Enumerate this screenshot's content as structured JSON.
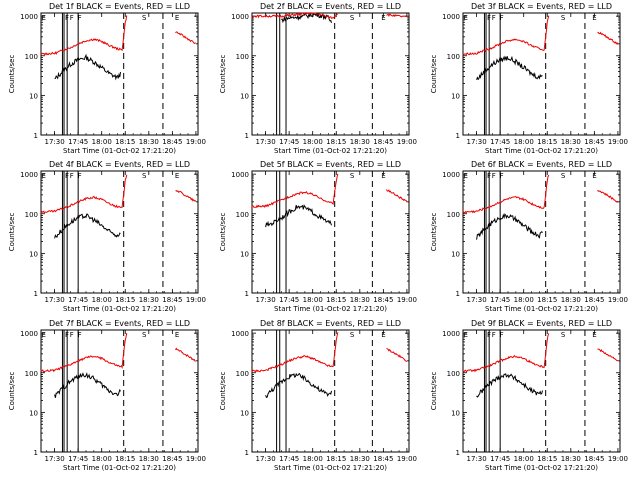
{
  "colors": {
    "events": "#000000",
    "lld": "#ee0000",
    "background": "#ffffff"
  },
  "ylabel": "Counts/sec",
  "xlabel": "Start Time (01-Oct-02 17:21:20)",
  "xticks": [
    "17:30",
    "17:45",
    "18:00",
    "18:15",
    "18:30",
    "18:45",
    "19:00"
  ],
  "yticks": [
    "1",
    "10",
    "100",
    "1000"
  ],
  "chart_data": [
    {
      "type": "line",
      "title": "Det 1f BLACK = Events, RED = LLD",
      "x_range": [
        "17:21:20",
        "19:01:20"
      ],
      "ylim": [
        1,
        1200
      ],
      "y_scale": "log",
      "events_start": "17:30",
      "events_end": "18:12",
      "series": [
        {
          "name": "Events",
          "x": [
            "17:30",
            "17:35",
            "17:40",
            "17:45",
            "17:50",
            "17:55",
            "18:00",
            "18:05",
            "18:10",
            "18:12"
          ],
          "values": [
            25,
            40,
            60,
            80,
            90,
            70,
            50,
            35,
            28,
            35
          ]
        },
        {
          "name": "LLD",
          "x": [
            "17:21",
            "17:30",
            "17:40",
            "17:45",
            "17:50",
            "17:55",
            "18:00",
            "18:05",
            "18:10",
            "18:13",
            "18:15",
            "18:16",
            "18:47",
            "18:50",
            "19:00"
          ],
          "values": [
            110,
            115,
            160,
            200,
            240,
            260,
            230,
            180,
            150,
            140,
            700,
            1000,
            400,
            350,
            200
          ]
        }
      ],
      "annotations": [
        {
          "label": "E",
          "x": "17:21"
        },
        {
          "label": "F",
          "x": "17:36"
        },
        {
          "label": "F",
          "x": "17:39"
        },
        {
          "label": "F",
          "x": "17:44"
        },
        {
          "label": "S",
          "x": "18:25"
        },
        {
          "label": "E",
          "x": "18:46"
        }
      ],
      "vlines_solid": [
        "17:35",
        "17:36",
        "17:38",
        "17:45"
      ],
      "vlines_dashed": [
        "18:14",
        "18:39"
      ]
    },
    {
      "type": "line",
      "title": "Det 2f BLACK = Events, RED = LLD",
      "x_range": [
        "17:21:20",
        "19:01:20"
      ],
      "ylim": [
        1,
        1200
      ],
      "y_scale": "log",
      "events_start": "17:40",
      "events_end": "18:12",
      "series": [
        {
          "name": "Events",
          "x": [
            "17:40",
            "17:45",
            "17:50",
            "17:55",
            "18:00",
            "18:05",
            "18:10",
            "18:12"
          ],
          "values": [
            800,
            900,
            950,
            1000,
            1100,
            1050,
            900,
            700
          ]
        },
        {
          "name": "LLD",
          "x": [
            "17:21",
            "17:30",
            "17:40",
            "17:45",
            "17:50",
            "17:55",
            "18:00",
            "18:05",
            "18:10",
            "18:13",
            "18:15",
            "18:16",
            "18:47",
            "18:50",
            "19:00"
          ],
          "values": [
            1000,
            1000,
            1000,
            1050,
            1100,
            1150,
            1200,
            1100,
            950,
            900,
            1100,
            1150,
            1100,
            1050,
            950
          ]
        }
      ],
      "annotations": [
        {
          "label": "S",
          "x": "18:23"
        },
        {
          "label": "E",
          "x": "18:43"
        }
      ],
      "vlines_solid": [
        "17:37",
        "17:39",
        "17:43"
      ],
      "vlines_dashed": [
        "18:14",
        "18:38"
      ]
    },
    {
      "type": "line",
      "title": "Det 3f BLACK = Events, RED = LLD",
      "x_range": [
        "17:21:20",
        "19:01:20"
      ],
      "ylim": [
        1,
        1200
      ],
      "y_scale": "log",
      "events_start": "17:30",
      "events_end": "18:12",
      "series": [
        {
          "name": "Events",
          "x": [
            "17:30",
            "17:35",
            "17:40",
            "17:45",
            "17:50",
            "17:55",
            "18:00",
            "18:05",
            "18:10",
            "18:12"
          ],
          "values": [
            25,
            40,
            60,
            80,
            90,
            70,
            50,
            35,
            28,
            35
          ]
        },
        {
          "name": "LLD",
          "x": [
            "17:21",
            "17:30",
            "17:40",
            "17:45",
            "17:50",
            "17:55",
            "18:00",
            "18:05",
            "18:10",
            "18:13",
            "18:15",
            "18:16",
            "18:47",
            "18:50",
            "19:00"
          ],
          "values": [
            110,
            115,
            160,
            200,
            240,
            260,
            230,
            180,
            150,
            140,
            700,
            1000,
            400,
            350,
            200
          ]
        }
      ],
      "annotations": [
        {
          "label": "E",
          "x": "17:21"
        },
        {
          "label": "F",
          "x": "17:36"
        },
        {
          "label": "F",
          "x": "17:39"
        },
        {
          "label": "F",
          "x": "17:44"
        },
        {
          "label": "S",
          "x": "18:23"
        },
        {
          "label": "E",
          "x": "18:43"
        }
      ],
      "vlines_solid": [
        "17:35",
        "17:36",
        "17:38",
        "17:45"
      ],
      "vlines_dashed": [
        "18:14",
        "18:39"
      ]
    },
    {
      "type": "line",
      "title": "Det 4f BLACK = Events, RED = LLD",
      "x_range": [
        "17:21:20",
        "19:01:20"
      ],
      "ylim": [
        1,
        1200
      ],
      "y_scale": "log",
      "events_start": "17:30",
      "events_end": "18:12",
      "series": [
        {
          "name": "Events",
          "x": [
            "17:30",
            "17:35",
            "17:40",
            "17:45",
            "17:50",
            "17:55",
            "18:00",
            "18:05",
            "18:10",
            "18:12"
          ],
          "values": [
            25,
            40,
            60,
            80,
            90,
            70,
            50,
            35,
            28,
            35
          ]
        },
        {
          "name": "LLD",
          "x": [
            "17:21",
            "17:30",
            "17:40",
            "17:45",
            "17:50",
            "17:55",
            "18:00",
            "18:05",
            "18:10",
            "18:13",
            "18:15",
            "18:16",
            "18:47",
            "18:50",
            "19:00"
          ],
          "values": [
            110,
            115,
            160,
            200,
            240,
            260,
            230,
            180,
            150,
            140,
            700,
            1000,
            400,
            350,
            200
          ]
        }
      ],
      "annotations": [
        {
          "label": "E",
          "x": "17:21"
        },
        {
          "label": "F",
          "x": "17:36"
        },
        {
          "label": "F",
          "x": "17:39"
        },
        {
          "label": "F",
          "x": "17:44"
        },
        {
          "label": "S",
          "x": "18:25"
        },
        {
          "label": "E",
          "x": "18:46"
        }
      ],
      "vlines_solid": [
        "17:35",
        "17:36",
        "17:38",
        "17:45"
      ],
      "vlines_dashed": [
        "18:14",
        "18:39"
      ]
    },
    {
      "type": "line",
      "title": "Det 5f BLACK = Events, RED = LLD",
      "x_range": [
        "17:21:20",
        "19:01:20"
      ],
      "ylim": [
        1,
        1200
      ],
      "y_scale": "log",
      "events_start": "17:30",
      "events_end": "18:12",
      "series": [
        {
          "name": "Events",
          "x": [
            "17:30",
            "17:35",
            "17:40",
            "17:45",
            "17:50",
            "17:55",
            "18:00",
            "18:05",
            "18:10",
            "18:12"
          ],
          "values": [
            50,
            60,
            80,
            110,
            150,
            140,
            110,
            80,
            60,
            55
          ]
        },
        {
          "name": "LLD",
          "x": [
            "17:21",
            "17:30",
            "17:40",
            "17:45",
            "17:50",
            "17:55",
            "18:00",
            "18:05",
            "18:10",
            "18:13",
            "18:15",
            "18:16",
            "18:47",
            "18:50",
            "19:00"
          ],
          "values": [
            150,
            155,
            220,
            270,
            320,
            350,
            310,
            240,
            200,
            180,
            700,
            1000,
            400,
            350,
            200
          ]
        }
      ],
      "annotations": [
        {
          "label": "S",
          "x": "18:23"
        },
        {
          "label": "E",
          "x": "18:43"
        }
      ],
      "vlines_solid": [
        "17:37",
        "17:39",
        "17:43"
      ],
      "vlines_dashed": [
        "18:14",
        "18:38"
      ]
    },
    {
      "type": "line",
      "title": "Det 6f BLACK = Events, RED = LLD",
      "x_range": [
        "17:21:20",
        "19:01:20"
      ],
      "ylim": [
        1,
        1200
      ],
      "y_scale": "log",
      "events_start": "17:30",
      "events_end": "18:12",
      "series": [
        {
          "name": "Events",
          "x": [
            "17:30",
            "17:35",
            "17:40",
            "17:45",
            "17:50",
            "17:55",
            "18:00",
            "18:05",
            "18:10",
            "18:12"
          ],
          "values": [
            25,
            40,
            60,
            80,
            90,
            70,
            50,
            35,
            28,
            35
          ]
        },
        {
          "name": "LLD",
          "x": [
            "17:21",
            "17:30",
            "17:40",
            "17:45",
            "17:50",
            "17:55",
            "18:00",
            "18:05",
            "18:10",
            "18:13",
            "18:15",
            "18:16",
            "18:47",
            "18:50",
            "19:00"
          ],
          "values": [
            110,
            115,
            160,
            200,
            240,
            260,
            230,
            180,
            150,
            140,
            700,
            1000,
            400,
            350,
            200
          ]
        }
      ],
      "annotations": [
        {
          "label": "E",
          "x": "17:21"
        },
        {
          "label": "F",
          "x": "17:36"
        },
        {
          "label": "F",
          "x": "17:39"
        },
        {
          "label": "F",
          "x": "17:44"
        },
        {
          "label": "S",
          "x": "18:23"
        },
        {
          "label": "E",
          "x": "18:43"
        }
      ],
      "vlines_solid": [
        "17:35",
        "17:36",
        "17:38",
        "17:45"
      ],
      "vlines_dashed": [
        "18:14",
        "18:39"
      ]
    },
    {
      "type": "line",
      "title": "Det 7f BLACK = Events, RED = LLD",
      "x_range": [
        "17:21:20",
        "19:01:20"
      ],
      "ylim": [
        1,
        1200
      ],
      "y_scale": "log",
      "events_start": "17:30",
      "events_end": "18:12",
      "series": [
        {
          "name": "Events",
          "x": [
            "17:30",
            "17:35",
            "17:40",
            "17:45",
            "17:50",
            "17:55",
            "18:00",
            "18:05",
            "18:10",
            "18:12"
          ],
          "values": [
            25,
            40,
            60,
            80,
            90,
            70,
            50,
            35,
            28,
            35
          ]
        },
        {
          "name": "LLD",
          "x": [
            "17:21",
            "17:30",
            "17:40",
            "17:45",
            "17:50",
            "17:55",
            "18:00",
            "18:05",
            "18:10",
            "18:13",
            "18:15",
            "18:16",
            "18:47",
            "18:50",
            "19:00"
          ],
          "values": [
            110,
            115,
            160,
            200,
            240,
            260,
            230,
            180,
            150,
            140,
            700,
            1000,
            400,
            350,
            200
          ]
        }
      ],
      "annotations": [
        {
          "label": "E",
          "x": "17:21"
        },
        {
          "label": "F",
          "x": "17:36"
        },
        {
          "label": "F",
          "x": "17:39"
        },
        {
          "label": "F",
          "x": "17:44"
        },
        {
          "label": "S",
          "x": "18:25"
        },
        {
          "label": "E",
          "x": "18:46"
        }
      ],
      "vlines_solid": [
        "17:35",
        "17:36",
        "17:38",
        "17:45"
      ],
      "vlines_dashed": [
        "18:14",
        "18:39"
      ]
    },
    {
      "type": "line",
      "title": "Det 8f BLACK = Events, RED = LLD",
      "x_range": [
        "17:21:20",
        "19:01:20"
      ],
      "ylim": [
        1,
        1200
      ],
      "y_scale": "log",
      "events_start": "17:30",
      "events_end": "18:12",
      "series": [
        {
          "name": "Events",
          "x": [
            "17:30",
            "17:35",
            "17:40",
            "17:45",
            "17:50",
            "17:55",
            "18:00",
            "18:05",
            "18:10",
            "18:12"
          ],
          "values": [
            25,
            40,
            60,
            80,
            90,
            70,
            50,
            35,
            28,
            35
          ]
        },
        {
          "name": "LLD",
          "x": [
            "17:21",
            "17:30",
            "17:40",
            "17:45",
            "17:50",
            "17:55",
            "18:00",
            "18:05",
            "18:10",
            "18:13",
            "18:15",
            "18:16",
            "18:47",
            "18:50",
            "19:00"
          ],
          "values": [
            110,
            115,
            160,
            200,
            240,
            260,
            230,
            180,
            150,
            140,
            700,
            1000,
            400,
            350,
            200
          ]
        }
      ],
      "annotations": [
        {
          "label": "S",
          "x": "18:23"
        },
        {
          "label": "E",
          "x": "18:43"
        }
      ],
      "vlines_solid": [
        "17:37",
        "17:39",
        "17:43"
      ],
      "vlines_dashed": [
        "18:14",
        "18:38"
      ]
    },
    {
      "type": "line",
      "title": "Det 9f BLACK = Events, RED = LLD",
      "x_range": [
        "17:21:20",
        "19:01:20"
      ],
      "ylim": [
        1,
        1200
      ],
      "y_scale": "log",
      "events_start": "17:30",
      "events_end": "18:12",
      "series": [
        {
          "name": "Events",
          "x": [
            "17:30",
            "17:35",
            "17:40",
            "17:45",
            "17:50",
            "17:55",
            "18:00",
            "18:05",
            "18:10",
            "18:12"
          ],
          "values": [
            25,
            40,
            60,
            80,
            90,
            70,
            50,
            35,
            28,
            35
          ]
        },
        {
          "name": "LLD",
          "x": [
            "17:21",
            "17:30",
            "17:40",
            "17:45",
            "17:50",
            "17:55",
            "18:00",
            "18:05",
            "18:10",
            "18:13",
            "18:15",
            "18:16",
            "18:47",
            "18:50",
            "19:00"
          ],
          "values": [
            110,
            115,
            160,
            200,
            240,
            260,
            230,
            180,
            150,
            140,
            700,
            1000,
            400,
            350,
            200
          ]
        }
      ],
      "annotations": [
        {
          "label": "E",
          "x": "17:21"
        },
        {
          "label": "F",
          "x": "17:36"
        },
        {
          "label": "F",
          "x": "17:39"
        },
        {
          "label": "F",
          "x": "17:44"
        },
        {
          "label": "S",
          "x": "18:23"
        },
        {
          "label": "E",
          "x": "18:43"
        }
      ],
      "vlines_solid": [
        "17:35",
        "17:36",
        "17:38",
        "17:45"
      ],
      "vlines_dashed": [
        "18:14",
        "18:39"
      ]
    }
  ]
}
